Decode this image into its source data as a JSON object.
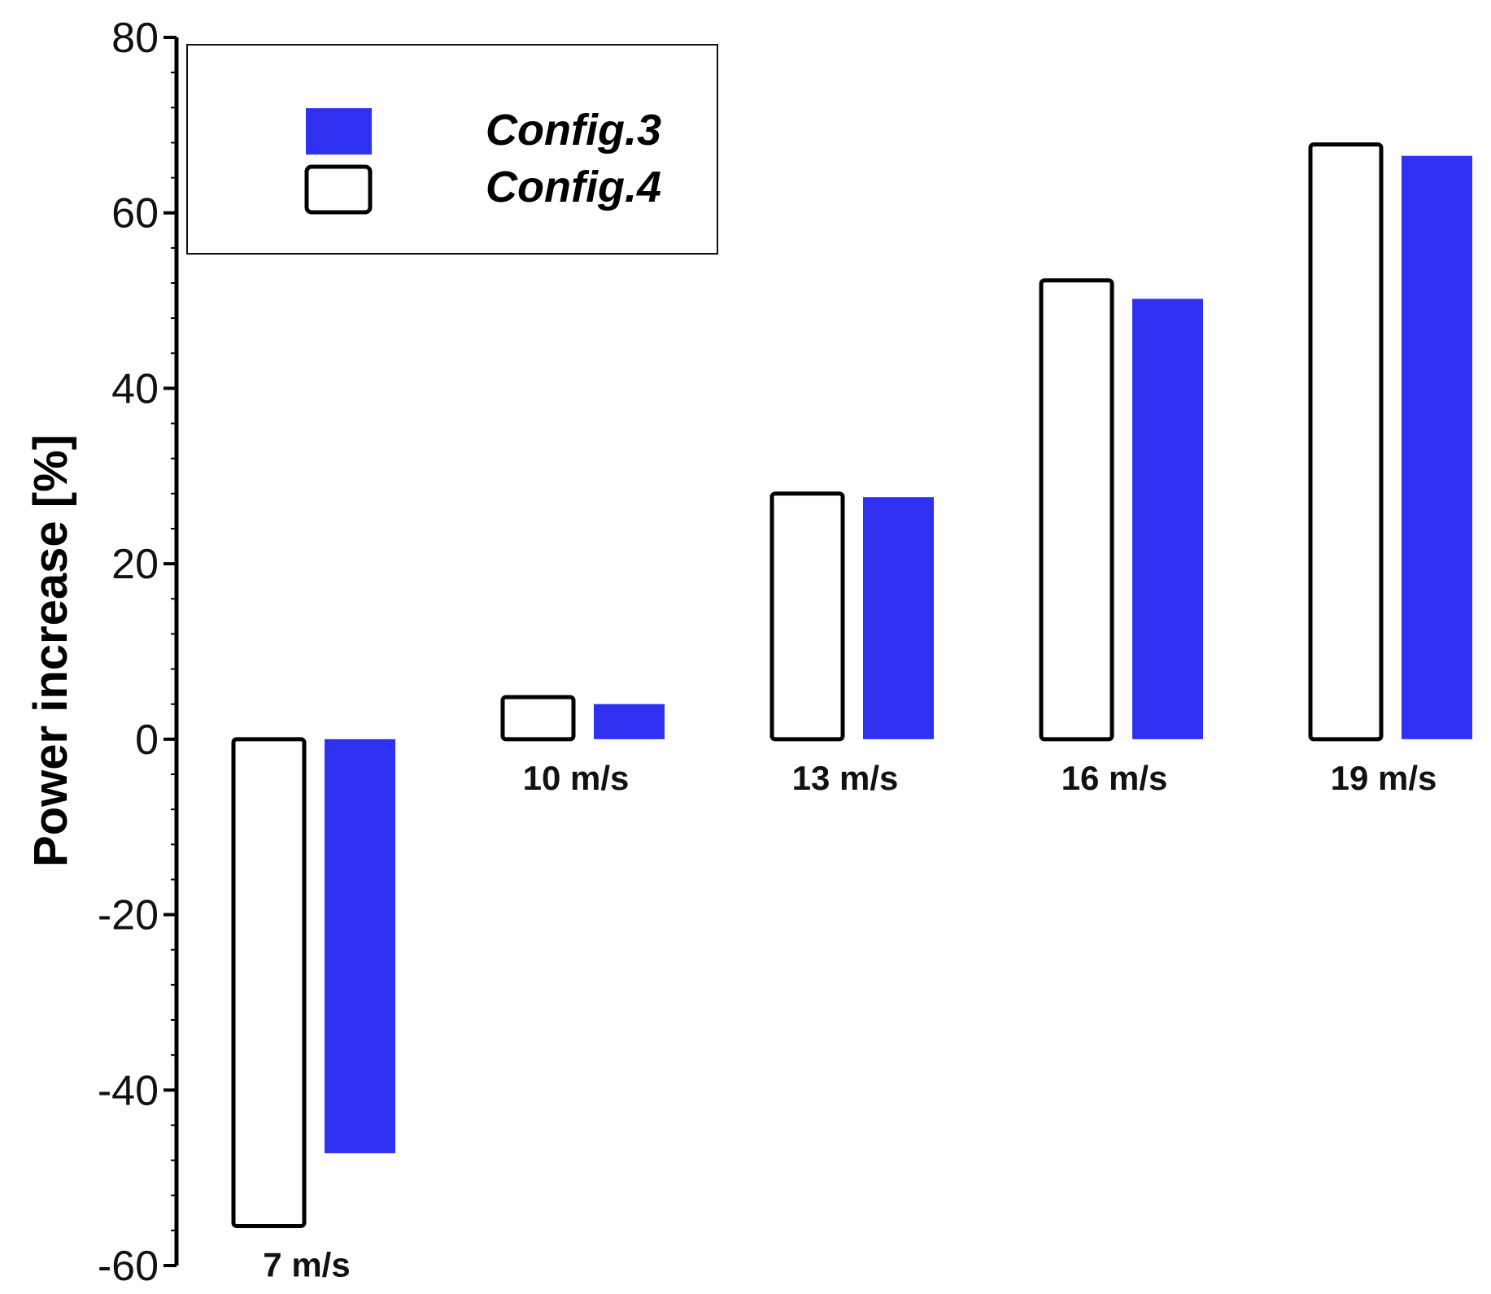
{
  "chart_data": {
    "type": "bar",
    "title": "",
    "xlabel": "",
    "ylabel": "Power increase [%]",
    "ylim": [
      -60,
      80
    ],
    "yticks": [
      80,
      60,
      40,
      20,
      0,
      -20,
      -40,
      -60
    ],
    "ytick_labels": [
      "80",
      "60",
      "40",
      "20",
      "0",
      "-20",
      "-40",
      "-60"
    ],
    "categories": [
      "7 m/s",
      "10 m/s",
      "13 m/s",
      "16 m/s",
      "19 m/s"
    ],
    "series": [
      {
        "name": "Config.4",
        "style": "outline",
        "color": "#000000",
        "values": [
          -55.5,
          4.8,
          28.0,
          52.3,
          67.8
        ]
      },
      {
        "name": "Config.3",
        "style": "filled",
        "color": "#3030f0",
        "values": [
          -47.2,
          4.0,
          27.6,
          50.2,
          66.5
        ]
      }
    ],
    "legend": {
      "position": "top-left",
      "entries": [
        {
          "label": "Config.3",
          "style": "filled",
          "color": "#3030f0"
        },
        {
          "label": "Config.4",
          "style": "outline",
          "color": "#000000"
        }
      ]
    },
    "grid": false
  }
}
